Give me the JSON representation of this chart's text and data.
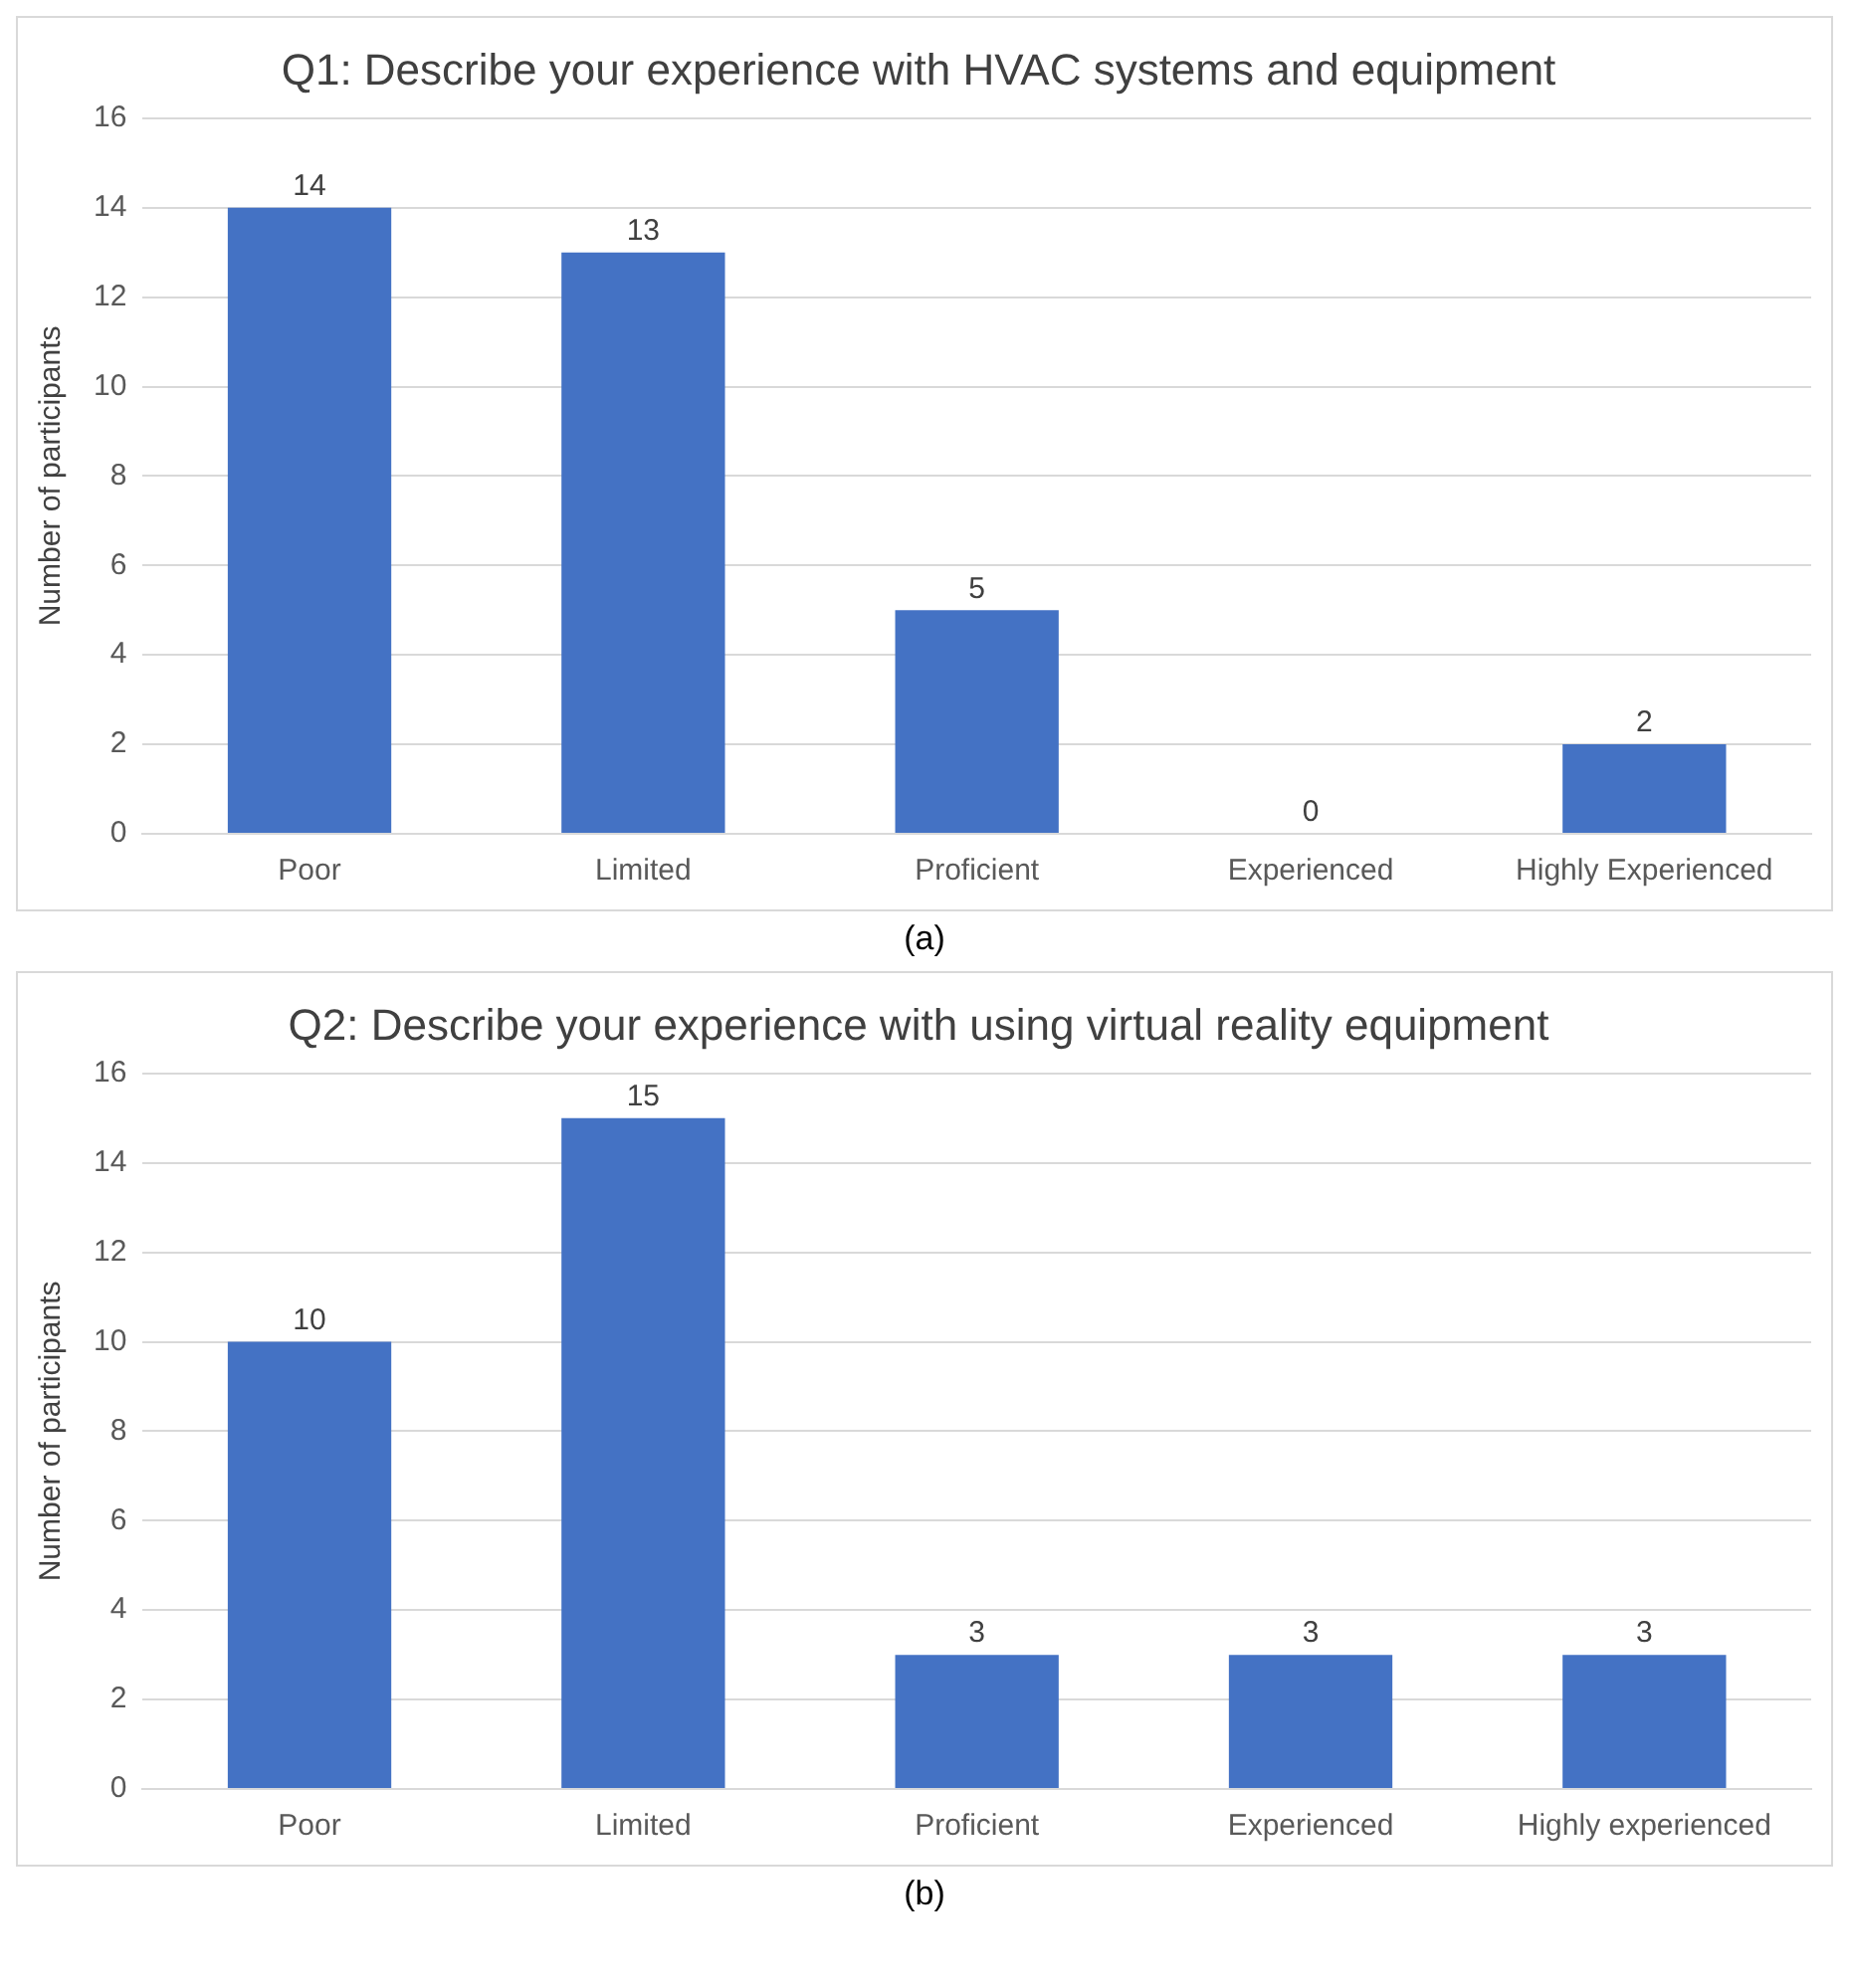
{
  "chart_data": [
    {
      "type": "bar",
      "title": "Q1: Describe your experience with HVAC systems and equipment",
      "ylabel": "Number of participants",
      "categories": [
        "Poor",
        "Limited",
        "Proficient",
        "Experienced",
        "Highly Experienced"
      ],
      "values": [
        14,
        13,
        5,
        0,
        2
      ],
      "color": "#4472c4",
      "ylim": [
        0,
        16
      ],
      "yticks": [
        0,
        2,
        4,
        6,
        8,
        10,
        12,
        14,
        16
      ],
      "grid": "y",
      "legend": false,
      "data_labels": true,
      "annotations": [
        "(a)"
      ]
    },
    {
      "type": "bar",
      "title": "Q2: Describe your experience with using virtual reality equipment",
      "ylabel": "Number of participants",
      "categories": [
        "Poor",
        "Limited",
        "Proficient",
        "Experienced",
        "Highly experienced"
      ],
      "values": [
        10,
        15,
        3,
        3,
        3
      ],
      "color": "#4472c4",
      "ylim": [
        0,
        16
      ],
      "yticks": [
        0,
        2,
        4,
        6,
        8,
        10,
        12,
        14,
        16
      ],
      "grid": "y",
      "legend": false,
      "data_labels": true,
      "annotations": [
        "(b)"
      ]
    }
  ]
}
